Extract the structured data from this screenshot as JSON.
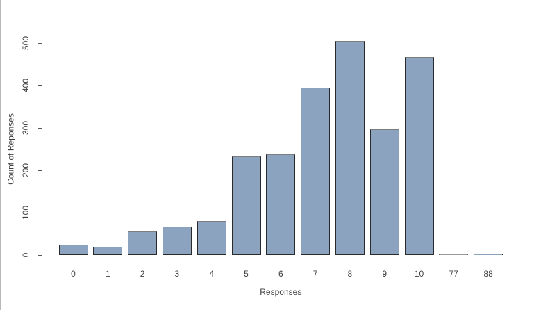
{
  "chart_data": {
    "type": "bar",
    "categories": [
      "0",
      "1",
      "2",
      "3",
      "4",
      "5",
      "6",
      "7",
      "8",
      "9",
      "10",
      "77",
      "88"
    ],
    "values": [
      25,
      20,
      55,
      68,
      80,
      232,
      238,
      395,
      505,
      296,
      468,
      1,
      4
    ],
    "title": "",
    "xlabel": "Responses",
    "ylabel": "Count of Reponses",
    "ylim": [
      0,
      500
    ],
    "yticks": [
      0,
      100,
      200,
      300,
      400,
      500
    ],
    "grid": false,
    "legend": "none",
    "colors": {
      "bar_fill": "#8ca3c0",
      "bar_border": "#2a2a2a",
      "axis_line": "#8a8a8a",
      "text": "#3f3f3f",
      "window_edge": "#b9b9b9",
      "background": "#ffffff"
    }
  }
}
